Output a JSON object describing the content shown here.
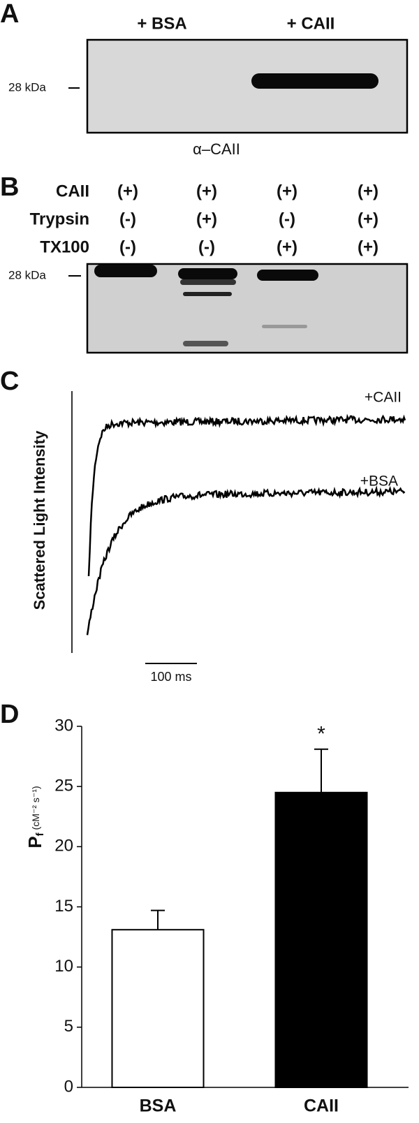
{
  "panel_labels": [
    "A",
    "B",
    "C",
    "D"
  ],
  "panel_a": {
    "lanes": [
      "+ BSA",
      "+ CAII"
    ],
    "marker": "28 kDa",
    "antibody": "α–CAII"
  },
  "panel_b": {
    "rows": [
      {
        "label": "CAII",
        "cells": [
          "(+)",
          "(+)",
          "(+)",
          "(+)"
        ]
      },
      {
        "label": "Trypsin",
        "cells": [
          "(-)",
          "(+)",
          "(-)",
          "(+)"
        ]
      },
      {
        "label": "TX100",
        "cells": [
          "(-)",
          "(-)",
          "(+)",
          "(+)"
        ]
      }
    ],
    "marker": "28 kDa"
  },
  "panel_c": {
    "y_label": "Scattered Light Intensity",
    "traces": [
      "+CAII",
      "+BSA"
    ],
    "scale_bar": "100 ms"
  },
  "chart_data": {
    "type": "bar",
    "categories": [
      "BSA",
      "CAII"
    ],
    "values": [
      13.1,
      24.5
    ],
    "errors": [
      1.6,
      3.6
    ],
    "colors": [
      "#ffffff",
      "#000000"
    ],
    "ylim": [
      0,
      30
    ],
    "yticks": [
      0,
      5,
      10,
      15,
      20,
      25,
      30
    ],
    "y_label": "P",
    "y_label_sub": "f",
    "y_label_unit": "(cM⁻² s⁻¹)",
    "annotation": "*"
  }
}
